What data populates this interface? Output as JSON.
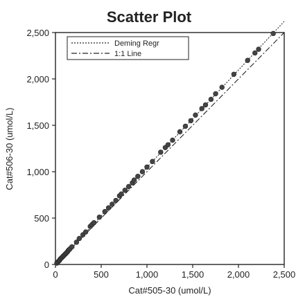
{
  "chart_data": {
    "type": "scatter",
    "title": "Scatter Plot",
    "xlabel": "Cat#505-30 (umol/L)",
    "ylabel": "Cat#506-30 (umol/L)",
    "xlim": [
      0,
      2500
    ],
    "ylim": [
      0,
      2500
    ],
    "x_ticks": [
      0,
      500,
      1000,
      1500,
      2000,
      2500
    ],
    "y_ticks": [
      0,
      500,
      1000,
      1500,
      2000,
      2500
    ],
    "x_tick_labels": [
      "0",
      "500",
      "1,000",
      "1,500",
      "2,000",
      "2,500"
    ],
    "y_tick_labels": [
      "0",
      "500",
      "1,000",
      "1,500",
      "2,000",
      "2,500"
    ],
    "legend_position": "top-left",
    "grid": false,
    "legend": [
      {
        "label": "Deming Regr",
        "style": "dotted"
      },
      {
        "label": "1:1 Line",
        "style": "dash-dot"
      }
    ],
    "lines": [
      {
        "name": "Deming Regr",
        "style": "dotted",
        "x": [
          0,
          2500
        ],
        "y": [
          0,
          2620
        ]
      },
      {
        "name": "1:1 Line",
        "style": "dash-dot",
        "x": [
          0,
          2500
        ],
        "y": [
          0,
          2500
        ]
      }
    ],
    "points": {
      "x": [
        15,
        25,
        35,
        45,
        50,
        60,
        70,
        80,
        90,
        100,
        110,
        120,
        130,
        140,
        150,
        160,
        180,
        230,
        260,
        300,
        330,
        380,
        400,
        420,
        480,
        540,
        580,
        620,
        660,
        700,
        720,
        760,
        800,
        840,
        860,
        900,
        950,
        1000,
        1060,
        1150,
        1200,
        1230,
        1280,
        1360,
        1420,
        1480,
        1530,
        1600,
        1640,
        1700,
        1750,
        1820,
        1950,
        2100,
        2180,
        2220,
        2380
      ],
      "y": [
        15,
        25,
        35,
        45,
        55,
        65,
        75,
        85,
        95,
        105,
        115,
        125,
        135,
        150,
        160,
        170,
        190,
        240,
        280,
        320,
        350,
        410,
        430,
        450,
        510,
        570,
        610,
        650,
        690,
        740,
        760,
        800,
        840,
        880,
        910,
        950,
        1000,
        1050,
        1110,
        1210,
        1260,
        1290,
        1340,
        1430,
        1490,
        1550,
        1610,
        1680,
        1720,
        1780,
        1840,
        1910,
        2050,
        2200,
        2280,
        2320,
        2490
      ]
    }
  }
}
